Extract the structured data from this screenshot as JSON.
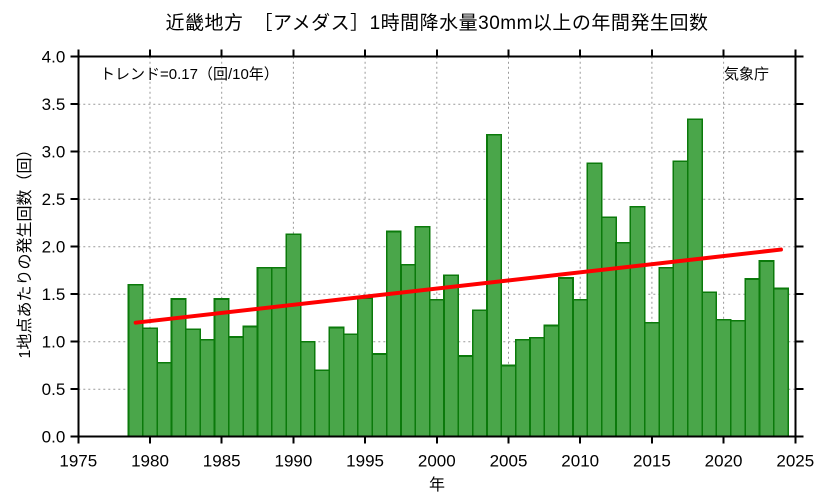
{
  "title": "近畿地方　［アメダス］1時間降水量30mm以上の年間発生回数",
  "annotations": {
    "trend_label": "トレンド=0.17（回/10年）",
    "agency": "気象庁"
  },
  "chart_data": {
    "type": "bar",
    "title": "近畿地方　［アメダス］1時間降水量30mm以上の年間発生回数",
    "xlabel": "年",
    "ylabel": "1地点あたりの発生回数（回）",
    "xlim": [
      1975,
      2025
    ],
    "ylim": [
      0.0,
      4.0
    ],
    "grid": true,
    "x_ticks": [
      1975,
      1980,
      1985,
      1990,
      1995,
      2000,
      2005,
      2010,
      2015,
      2020,
      2025
    ],
    "y_tick_labels": [
      "0.0",
      "0.5",
      "1.0",
      "1.5",
      "2.0",
      "2.5",
      "3.0",
      "3.5",
      "4.0"
    ],
    "years": [
      1979,
      1980,
      1981,
      1982,
      1983,
      1984,
      1985,
      1986,
      1987,
      1988,
      1989,
      1990,
      1991,
      1992,
      1993,
      1994,
      1995,
      1996,
      1997,
      1998,
      1999,
      2000,
      2001,
      2002,
      2003,
      2004,
      2005,
      2006,
      2007,
      2008,
      2009,
      2010,
      2011,
      2012,
      2013,
      2014,
      2015,
      2016,
      2017,
      2018,
      2019,
      2020,
      2021,
      2022,
      2023,
      2024
    ],
    "values": [
      1.6,
      1.14,
      0.78,
      1.45,
      1.13,
      1.02,
      1.45,
      1.05,
      1.16,
      1.78,
      1.78,
      2.13,
      1.0,
      0.7,
      1.15,
      1.08,
      1.46,
      0.87,
      2.16,
      1.81,
      2.21,
      1.44,
      1.7,
      0.85,
      1.33,
      3.18,
      0.75,
      1.02,
      1.04,
      1.17,
      1.67,
      1.44,
      2.88,
      2.31,
      2.04,
      2.42,
      1.2,
      1.78,
      2.9,
      3.34,
      1.52,
      1.23,
      1.22,
      1.66,
      1.85,
      1.56
    ],
    "trend_line": {
      "label": "トレンド=0.17（回/10年）",
      "rate_per_decade": 0.17,
      "x_start": 1979,
      "y_start": 1.2,
      "x_end": 2024,
      "y_end": 1.97
    },
    "colors": {
      "bar_fill": "#4aa64a",
      "bar_edge": "#0b7a0b",
      "trend": "#ff0000",
      "grid": "#999999",
      "axis": "#000000"
    }
  }
}
